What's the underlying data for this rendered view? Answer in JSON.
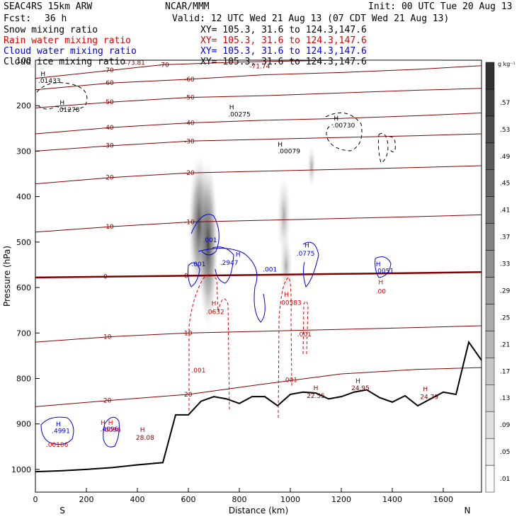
{
  "header": {
    "model": "SEAC4RS 15km ARW",
    "center": "NCAR/MMM",
    "init": "Init: 00 UTC Tue 20 Aug 13",
    "fcst_label": "Fcst:",
    "fcst_value": "36 h",
    "valid": "Valid: 12 UTC Wed 21 Aug 13 (07 CDT Wed 21 Aug 13)"
  },
  "fields": [
    {
      "name": "Snow mixing ratio",
      "xy": "",
      "color": "#000000"
    },
    {
      "name": "Rain water mixing ratio",
      "xy": "XY= 105.3, 31.6 to 124.3,147.6",
      "color": "#dd0000"
    },
    {
      "name": "Cloud water mixing ratio",
      "xy": "XY= 105.3, 31.6 to 124.3,147.6",
      "color": "#0000dd"
    },
    {
      "name": "Cloud ice mixing ratio",
      "xy": "XY= 105.3, 31.6 to 124.3,147.6",
      "color": "#000000"
    }
  ],
  "snow_xy": "XY= 105.3, 31.6 to 124.3,147.6",
  "colors": {
    "temperature": "#800000",
    "rain": "#dd0000",
    "cloud_water": "#0000dd",
    "ice": "#000000",
    "terrain": "#000000"
  },
  "chart_data": {
    "type": "line",
    "title": "",
    "xlabel": "Distance (km)",
    "ylabel": "Pressure (hPa)",
    "xlim": [
      0,
      1750
    ],
    "ylim": [
      1050,
      100
    ],
    "x_ticks": [
      "0",
      "200",
      "400",
      "600",
      "800",
      "1000",
      "1200",
      "1400",
      "1600"
    ],
    "y_ticks": [
      "100",
      "200",
      "300",
      "400",
      "500",
      "600",
      "700",
      "800",
      "900",
      "1000"
    ],
    "endpoint_left": "S",
    "endpoint_right": "N",
    "colorbar": {
      "unit": "g kg⁻¹",
      "levels": [
        ".01",
        ".05",
        ".09",
        ".13",
        ".17",
        ".21",
        ".25",
        ".29",
        ".33",
        ".37",
        ".41",
        ".45",
        ".49",
        ".53",
        ".57"
      ]
    },
    "isotherms": [
      {
        "label": "-70",
        "points": [
          [
            0,
            140
          ],
          [
            300,
            122
          ],
          [
            500,
            110
          ],
          [
            800,
            104
          ],
          [
            1200,
            100
          ],
          [
            1600,
            100
          ]
        ]
      },
      {
        "label": "-60",
        "points": [
          [
            0,
            165
          ],
          [
            300,
            150
          ],
          [
            600,
            142
          ],
          [
            900,
            132
          ],
          [
            1200,
            127
          ],
          [
            1500,
            120
          ],
          [
            1750,
            112
          ]
        ]
      },
      {
        "label": "-50",
        "points": [
          [
            0,
            205
          ],
          [
            300,
            192
          ],
          [
            600,
            182
          ],
          [
            900,
            178
          ],
          [
            1200,
            172
          ],
          [
            1500,
            166
          ],
          [
            1750,
            162
          ]
        ]
      },
      {
        "label": "-40",
        "points": [
          [
            0,
            262
          ],
          [
            300,
            248
          ],
          [
            600,
            238
          ],
          [
            900,
            232
          ],
          [
            1200,
            228
          ],
          [
            1500,
            222
          ],
          [
            1750,
            216
          ]
        ]
      },
      {
        "label": "-30",
        "points": [
          [
            0,
            300
          ],
          [
            300,
            288
          ],
          [
            600,
            278
          ],
          [
            900,
            274
          ],
          [
            1200,
            270
          ],
          [
            1500,
            266
          ],
          [
            1750,
            262
          ]
        ]
      },
      {
        "label": "-20",
        "points": [
          [
            0,
            372
          ],
          [
            300,
            358
          ],
          [
            600,
            348
          ],
          [
            900,
            344
          ],
          [
            1200,
            340
          ],
          [
            1500,
            336
          ],
          [
            1750,
            332
          ]
        ]
      },
      {
        "label": "-10",
        "points": [
          [
            0,
            478
          ],
          [
            300,
            466
          ],
          [
            600,
            456
          ],
          [
            900,
            452
          ],
          [
            1200,
            448
          ],
          [
            1500,
            444
          ],
          [
            1750,
            440
          ]
        ]
      },
      {
        "label": "0",
        "points": [
          [
            0,
            578
          ],
          [
            300,
            576
          ],
          [
            600,
            574
          ],
          [
            900,
            572
          ],
          [
            1200,
            570
          ],
          [
            1500,
            568
          ],
          [
            1750,
            566
          ]
        ]
      },
      {
        "label": "10",
        "points": [
          [
            0,
            720
          ],
          [
            300,
            708
          ],
          [
            600,
            700
          ],
          [
            900,
            696
          ],
          [
            1200,
            692
          ],
          [
            1500,
            688
          ],
          [
            1750,
            684
          ]
        ]
      },
      {
        "label": "20",
        "points": [
          [
            0,
            862
          ],
          [
            300,
            848
          ],
          [
            600,
            835
          ],
          [
            900,
            812
          ],
          [
            1200,
            790
          ],
          [
            1500,
            780
          ],
          [
            1750,
            776
          ]
        ]
      }
    ],
    "terrain": {
      "x": [
        0,
        100,
        200,
        300,
        400,
        500,
        550,
        600,
        650,
        700,
        750,
        800,
        850,
        900,
        950,
        1000,
        1050,
        1100,
        1150,
        1200,
        1250,
        1300,
        1350,
        1400,
        1450,
        1500,
        1550,
        1600,
        1650,
        1700,
        1750
      ],
      "p": [
        1005,
        1003,
        1000,
        996,
        990,
        985,
        880,
        880,
        850,
        840,
        845,
        855,
        840,
        840,
        860,
        835,
        830,
        832,
        845,
        840,
        830,
        825,
        842,
        852,
        838,
        860,
        845,
        830,
        835,
        720,
        760
      ]
    },
    "labels": [
      {
        "text": "-73.81",
        "x": 390,
        "p": 110,
        "kind": "temp"
      },
      {
        "text": "-71.74",
        "x": 880,
        "p": 118,
        "kind": "temp"
      },
      {
        "text": "H",
        "x": 30,
        "p": 135,
        "kind": "ice"
      },
      {
        "text": ".01433",
        "x": 55,
        "p": 150,
        "kind": "ice"
      },
      {
        "text": "H",
        "x": 105,
        "p": 198,
        "kind": "ice"
      },
      {
        "text": ".01278",
        "x": 130,
        "p": 214,
        "kind": "ice"
      },
      {
        "text": "H",
        "x": 770,
        "p": 208,
        "kind": "ice"
      },
      {
        "text": ".00275",
        "x": 800,
        "p": 224,
        "kind": "ice"
      },
      {
        "text": "H",
        "x": 1180,
        "p": 232,
        "kind": "ice"
      },
      {
        "text": ".00730",
        "x": 1210,
        "p": 248,
        "kind": "ice"
      },
      {
        "text": "H",
        "x": 960,
        "p": 290,
        "kind": "ice"
      },
      {
        "text": ".00079",
        "x": 995,
        "p": 305,
        "kind": "ice"
      },
      {
        "text": ".001",
        "x": 685,
        "p": 500,
        "kind": "cloud"
      },
      {
        "text": "H",
        "x": 795,
        "p": 532,
        "kind": "cloud"
      },
      {
        "text": ".2947",
        "x": 760,
        "p": 550,
        "kind": "cloud"
      },
      {
        "text": ".001",
        "x": 640,
        "p": 553,
        "kind": "cloud"
      },
      {
        "text": ".001",
        "x": 920,
        "p": 565,
        "kind": "cloud"
      },
      {
        "text": "H",
        "x": 1065,
        "p": 512,
        "kind": "cloud"
      },
      {
        "text": ".0775",
        "x": 1060,
        "p": 530,
        "kind": "cloud"
      },
      {
        "text": "H",
        "x": 1345,
        "p": 553,
        "kind": "cloud"
      },
      {
        "text": ".0051",
        "x": 1370,
        "p": 568,
        "kind": "cloud"
      },
      {
        "text": "H",
        "x": 1355,
        "p": 593,
        "kind": "rain"
      },
      {
        "text": ".00",
        "x": 1355,
        "p": 613,
        "kind": "rain"
      },
      {
        "text": "H",
        "x": 700,
        "p": 640,
        "kind": "rain"
      },
      {
        "text": ".0632",
        "x": 705,
        "p": 658,
        "kind": "rain"
      },
      {
        "text": "H",
        "x": 985,
        "p": 620,
        "kind": "rain"
      },
      {
        "text": ".00583",
        "x": 1000,
        "p": 638,
        "kind": "rain"
      },
      {
        "text": ".001",
        "x": 1055,
        "p": 707,
        "kind": "rain"
      },
      {
        "text": ".001",
        "x": 640,
        "p": 787,
        "kind": "rain"
      },
      {
        "text": ".001",
        "x": 1000,
        "p": 808,
        "kind": "rain"
      },
      {
        "text": "H",
        "x": 1100,
        "p": 826,
        "kind": "temp"
      },
      {
        "text": "22.55",
        "x": 1100,
        "p": 843,
        "kind": "temp"
      },
      {
        "text": "H",
        "x": 1265,
        "p": 810,
        "kind": "temp"
      },
      {
        "text": "24.95",
        "x": 1275,
        "p": 826,
        "kind": "temp"
      },
      {
        "text": "H",
        "x": 1530,
        "p": 828,
        "kind": "temp"
      },
      {
        "text": "24.79",
        "x": 1545,
        "p": 845,
        "kind": "temp"
      },
      {
        "text": "H",
        "x": 420,
        "p": 918,
        "kind": "temp"
      },
      {
        "text": "28.08",
        "x": 430,
        "p": 935,
        "kind": "temp"
      },
      {
        "text": "H",
        "x": 265,
        "p": 902,
        "kind": "rain"
      },
      {
        "text": "H",
        "x": 295,
        "p": 902,
        "kind": "rain"
      },
      {
        "text": ".4096",
        "x": 290,
        "p": 916,
        "kind": "cloud"
      },
      {
        "text": ".0096",
        "x": 300,
        "p": 918,
        "kind": "rain"
      },
      {
        "text": "H",
        "x": 90,
        "p": 905,
        "kind": "cloud"
      },
      {
        "text": ".4991",
        "x": 100,
        "p": 920,
        "kind": "cloud"
      },
      {
        "text": ".00106",
        "x": 85,
        "p": 950,
        "kind": "rain"
      }
    ]
  }
}
